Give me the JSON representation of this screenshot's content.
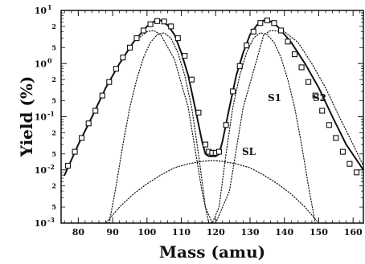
{
  "chart_data": {
    "type": "line",
    "title": "",
    "xlabel": "Mass (amu)",
    "ylabel": "Yield (%)",
    "xlim": [
      75,
      163
    ],
    "ylim": [
      0.001,
      10
    ],
    "yscale": "log",
    "grid": false,
    "x_ticks": [
      "80",
      "90",
      "100",
      "110",
      "120",
      "130",
      "140",
      "150",
      "160"
    ],
    "y_major_ticks": [
      {
        "base": "10",
        "exp": "1"
      },
      {
        "base": "10",
        "exp": "0"
      },
      {
        "base": "10",
        "exp": "-1"
      },
      {
        "base": "10",
        "exp": "-2"
      },
      {
        "base": "10",
        "exp": "-3"
      }
    ],
    "y_minor_labels": [
      "5",
      "2",
      "5",
      "2",
      "5",
      "2",
      "5",
      "2"
    ],
    "series": [
      {
        "name": "S1",
        "style": "dotted",
        "x": [
          89,
          91,
          93,
          95,
          97,
          99,
          101,
          103,
          105,
          107,
          109,
          111,
          113,
          115,
          117,
          119,
          121,
          123,
          125,
          127,
          129,
          131,
          133,
          135,
          137,
          139,
          141,
          143,
          145,
          147,
          149
        ],
        "y": [
          0.001,
          0.005,
          0.03,
          0.15,
          0.5,
          1.3,
          2.5,
          3.5,
          3.8,
          3.0,
          1.6,
          0.6,
          0.15,
          0.02,
          0.002,
          0.001,
          0.002,
          0.02,
          0.15,
          0.6,
          1.6,
          3.0,
          3.8,
          3.5,
          2.5,
          1.3,
          0.5,
          0.15,
          0.03,
          0.005,
          0.001
        ]
      },
      {
        "name": "S2",
        "style": "dotted",
        "x": [
          76,
          80,
          84,
          88,
          92,
          96,
          100,
          102,
          104,
          108,
          112,
          116,
          118,
          120,
          124,
          128,
          132,
          134,
          136,
          140,
          144,
          148,
          152,
          156,
          160,
          163
        ],
        "y": [
          0.008,
          0.03,
          0.1,
          0.35,
          1.0,
          2.5,
          4.0,
          4.2,
          3.5,
          1.2,
          0.15,
          0.004,
          0.001,
          0.001,
          0.004,
          0.15,
          1.2,
          3.5,
          4.2,
          4.0,
          2.5,
          1.0,
          0.35,
          0.1,
          0.03,
          0.012
        ]
      },
      {
        "name": "SL",
        "style": "dotted",
        "x": [
          85,
          88,
          92,
          96,
          100,
          104,
          108,
          112,
          116,
          119,
          122,
          126,
          130,
          134,
          138,
          142,
          146,
          150,
          153
        ],
        "y": [
          0.001,
          0.001,
          0.002,
          0.0035,
          0.0055,
          0.008,
          0.011,
          0.013,
          0.0145,
          0.015,
          0.0145,
          0.013,
          0.011,
          0.008,
          0.0055,
          0.0035,
          0.002,
          0.001,
          0.001
        ]
      },
      {
        "name": "",
        "style": "solid",
        "x": [
          76,
          80,
          84,
          88,
          92,
          96,
          100,
          102,
          104,
          106,
          108,
          110,
          112,
          114,
          116,
          117,
          118,
          119,
          120,
          121,
          122,
          124,
          126,
          128,
          130,
          132,
          134,
          136,
          138,
          142,
          146,
          150,
          154,
          158,
          163
        ],
        "y": [
          0.008,
          0.03,
          0.1,
          0.35,
          1.0,
          2.5,
          5.0,
          6.2,
          6.5,
          5.3,
          3.5,
          1.6,
          0.6,
          0.15,
          0.035,
          0.02,
          0.018,
          0.018,
          0.018,
          0.02,
          0.035,
          0.15,
          0.6,
          1.6,
          3.5,
          5.3,
          6.5,
          6.2,
          5.0,
          2.5,
          1.0,
          0.35,
          0.1,
          0.03,
          0.01
        ]
      },
      {
        "name": "",
        "style": "markers",
        "x": [
          77,
          79,
          81,
          83,
          85,
          87,
          89,
          91,
          93,
          95,
          97,
          99,
          101,
          103,
          105,
          107,
          109,
          111,
          113,
          115,
          117,
          118,
          119,
          120,
          121,
          123,
          125,
          127,
          129,
          131,
          133,
          135,
          137,
          139,
          141,
          143,
          145,
          147,
          149,
          151,
          153,
          155,
          157,
          159,
          161
        ],
        "y": [
          0.012,
          0.022,
          0.04,
          0.075,
          0.13,
          0.25,
          0.45,
          0.8,
          1.3,
          2.0,
          3.0,
          4.2,
          5.5,
          6.3,
          6.2,
          5.0,
          3.0,
          1.4,
          0.5,
          0.12,
          0.03,
          0.022,
          0.021,
          0.021,
          0.022,
          0.07,
          0.3,
          0.9,
          2.2,
          4.0,
          5.8,
          6.5,
          5.8,
          4.2,
          2.6,
          1.5,
          0.85,
          0.45,
          0.25,
          0.13,
          0.07,
          0.04,
          0.022,
          0.013,
          0.009
        ]
      }
    ],
    "annotations": [
      "S1",
      "S2",
      "SL"
    ]
  }
}
